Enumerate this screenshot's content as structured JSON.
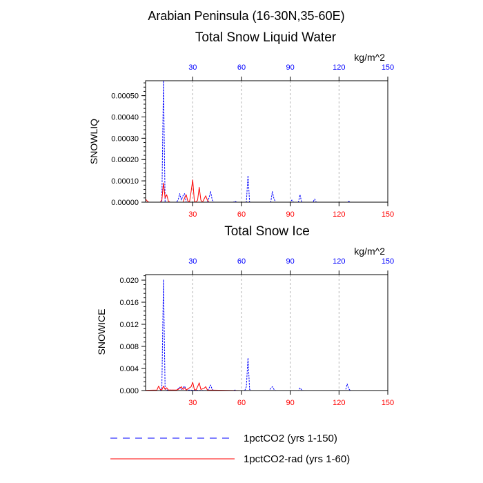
{
  "figure": {
    "main_title": "Arabian Peninsula (16-30N,35-60E)",
    "legend": [
      {
        "label": "1pctCO2 (yrs 1-150)",
        "color": "#0000ff",
        "style": "dashed"
      },
      {
        "label": "1pctCO2-rad (yrs 1-60)",
        "color": "#ff0000",
        "style": "solid"
      }
    ]
  },
  "chart_data": [
    {
      "type": "line",
      "title": "Total Snow Liquid Water",
      "units": "kg/m^2",
      "ylabel": "SNOWLIQ",
      "xlim": [
        1,
        150
      ],
      "ylim": [
        0,
        0.00057
      ],
      "yticks": [
        0,
        0.0001,
        0.0002,
        0.0003,
        0.0004,
        0.0005
      ],
      "ytick_labels": [
        "0.00000",
        "0.00010",
        "0.00020",
        "0.00030",
        "0.00040",
        "0.00050"
      ],
      "xticks_bottom": [
        30,
        60,
        90,
        120,
        150
      ],
      "xticks_top": [
        30,
        60,
        90,
        120,
        150
      ],
      "grid_x": [
        30,
        60,
        90,
        120
      ],
      "series": [
        {
          "color": "#0000ff",
          "dash": "dashed",
          "points": [
            [
              1,
              0
            ],
            [
              10,
              0
            ],
            [
              11,
              3e-06
            ],
            [
              12,
              0.00057
            ],
            [
              13,
              0
            ],
            [
              20,
              0
            ],
            [
              21,
              1e-05
            ],
            [
              22,
              4e-05
            ],
            [
              23,
              1e-05
            ],
            [
              24,
              3e-05
            ],
            [
              25,
              4e-05
            ],
            [
              26,
              0
            ],
            [
              39,
              0
            ],
            [
              40,
              2e-05
            ],
            [
              41,
              5e-05
            ],
            [
              42,
              1e-05
            ],
            [
              43,
              0
            ],
            [
              55,
              0
            ],
            [
              56,
              5e-06
            ],
            [
              57,
              0
            ],
            [
              63,
              0
            ],
            [
              64,
              0.000125
            ],
            [
              65,
              0
            ],
            [
              78,
              0
            ],
            [
              79,
              5e-05
            ],
            [
              80,
              1.5e-05
            ],
            [
              81,
              0
            ],
            [
              90,
              0
            ],
            [
              91,
              1e-05
            ],
            [
              92,
              0
            ],
            [
              95,
              0
            ],
            [
              96,
              3.5e-05
            ],
            [
              97,
              0
            ],
            [
              104,
              0
            ],
            [
              105,
              1.5e-05
            ],
            [
              106,
              0
            ],
            [
              125,
              0
            ],
            [
              126,
              4e-06
            ],
            [
              127,
              0
            ],
            [
              150,
              0
            ]
          ]
        },
        {
          "color": "#ff0000",
          "dash": "solid",
          "points": [
            [
              1,
              1.5e-05
            ],
            [
              2,
              5e-06
            ],
            [
              3,
              0
            ],
            [
              10,
              0
            ],
            [
              11,
              1e-05
            ],
            [
              12,
              9e-05
            ],
            [
              13,
              2e-05
            ],
            [
              14,
              3.5e-05
            ],
            [
              15,
              5e-06
            ],
            [
              16,
              0
            ],
            [
              24,
              0
            ],
            [
              25,
              2e-05
            ],
            [
              26,
              3.5e-05
            ],
            [
              27,
              5e-06
            ],
            [
              28,
              0
            ],
            [
              29,
              5e-05
            ],
            [
              30,
              0.000105
            ],
            [
              31,
              5e-06
            ],
            [
              32,
              0
            ],
            [
              33,
              1e-05
            ],
            [
              34,
              7e-05
            ],
            [
              35,
              1e-05
            ],
            [
              36,
              0
            ],
            [
              38,
              3e-05
            ],
            [
              39,
              1e-05
            ],
            [
              40,
              0
            ],
            [
              60,
              0
            ]
          ]
        }
      ]
    },
    {
      "type": "line",
      "title": "Total Snow Ice",
      "units": "kg/m^2",
      "ylabel": "SNOWICE",
      "xlim": [
        1,
        150
      ],
      "ylim": [
        0,
        0.021
      ],
      "yticks": [
        0,
        0.004,
        0.008,
        0.012,
        0.016,
        0.02
      ],
      "ytick_labels": [
        "0.000",
        "0.004",
        "0.008",
        "0.012",
        "0.016",
        "0.020"
      ],
      "xticks_bottom": [
        30,
        60,
        90,
        120,
        150
      ],
      "xticks_top": [
        30,
        60,
        90,
        120,
        150
      ],
      "grid_x": [
        30,
        60,
        90,
        120
      ],
      "series": [
        {
          "color": "#0000ff",
          "dash": "dashed",
          "points": [
            [
              1,
              0
            ],
            [
              10,
              0
            ],
            [
              11,
              0.0005
            ],
            [
              12,
              0.0201
            ],
            [
              13,
              0.0003
            ],
            [
              14,
              0.0001
            ],
            [
              20,
              5e-05
            ],
            [
              21,
              0.0003
            ],
            [
              22,
              0.0006
            ],
            [
              23,
              0.0002
            ],
            [
              24,
              0.0005
            ],
            [
              25,
              0.0008
            ],
            [
              26,
              0.0001
            ],
            [
              39,
              0
            ],
            [
              40,
              0.0004
            ],
            [
              41,
              0.001
            ],
            [
              42,
              0.0002
            ],
            [
              43,
              0
            ],
            [
              55,
              0
            ],
            [
              56,
              0.0001
            ],
            [
              57,
              0
            ],
            [
              62,
              0
            ],
            [
              63,
              0.0007
            ],
            [
              64,
              0.0059
            ],
            [
              65,
              0.0002
            ],
            [
              66,
              0
            ],
            [
              77,
              0
            ],
            [
              78,
              0.0004
            ],
            [
              79,
              0.0007
            ],
            [
              80,
              0.0002
            ],
            [
              81,
              0
            ],
            [
              95,
              0
            ],
            [
              96,
              0.0005
            ],
            [
              97,
              0.0001
            ],
            [
              98,
              0
            ],
            [
              124,
              0
            ],
            [
              125,
              0.0012
            ],
            [
              126,
              0.0003
            ],
            [
              127,
              0
            ],
            [
              150,
              0
            ]
          ]
        },
        {
          "color": "#ff0000",
          "dash": "solid",
          "points": [
            [
              1,
              5e-05
            ],
            [
              8,
              0.0001
            ],
            [
              9,
              0.0008
            ],
            [
              10,
              0.0002
            ],
            [
              11,
              0.0001
            ],
            [
              12,
              0.0008
            ],
            [
              13,
              0.0002
            ],
            [
              14,
              0.0005
            ],
            [
              15,
              0.0001
            ],
            [
              20,
              0.0001
            ],
            [
              21,
              0.0002
            ],
            [
              22,
              0.0004
            ],
            [
              23,
              0.0007
            ],
            [
              24,
              0.0002
            ],
            [
              25,
              0.0005
            ],
            [
              26,
              0.0001
            ],
            [
              29,
              0.0007
            ],
            [
              30,
              0.0015
            ],
            [
              31,
              0.0002
            ],
            [
              32,
              0.0001
            ],
            [
              33,
              0.0007
            ],
            [
              34,
              0.0014
            ],
            [
              35,
              0.0002
            ],
            [
              37,
              0.0004
            ],
            [
              38,
              0.0007
            ],
            [
              39,
              0.0001
            ],
            [
              60,
              0
            ]
          ]
        }
      ]
    }
  ]
}
